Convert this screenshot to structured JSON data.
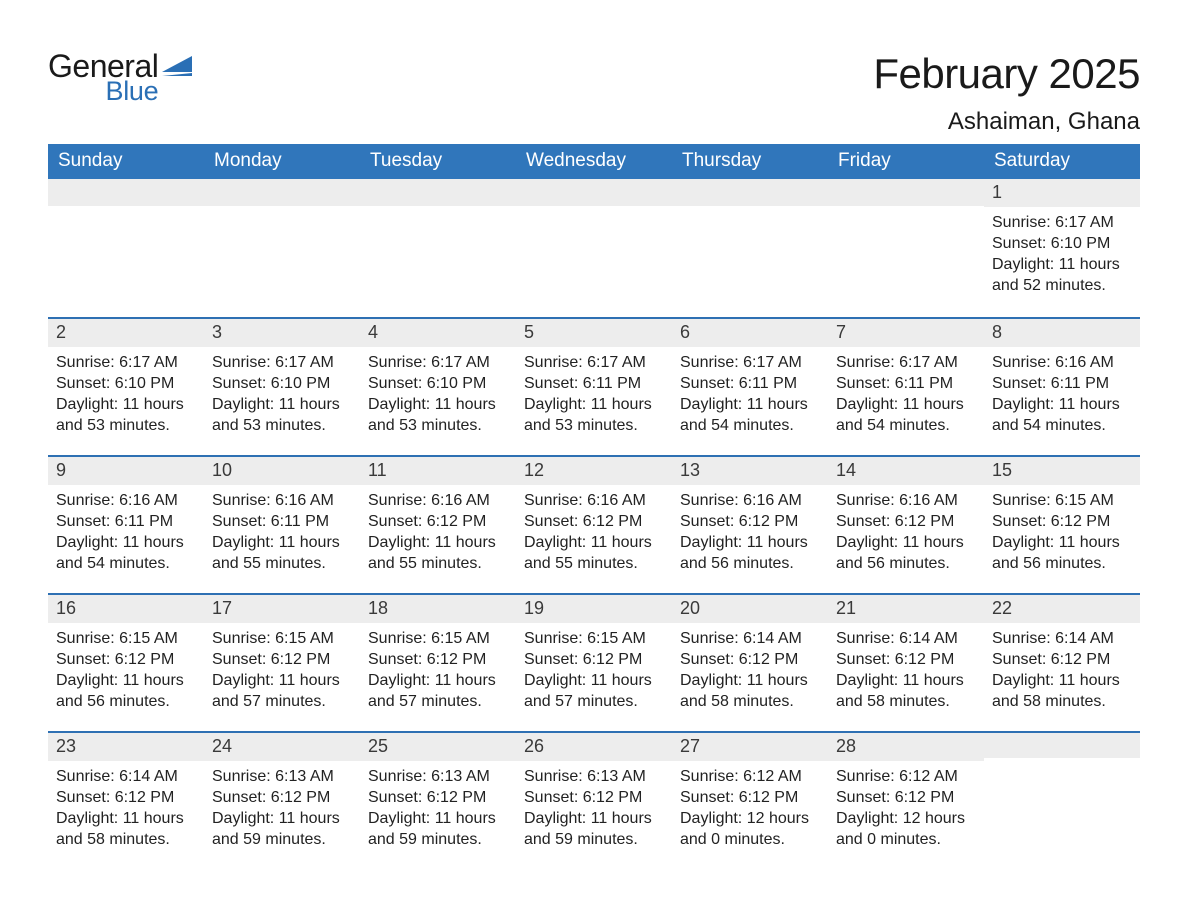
{
  "logo": {
    "word1": "General",
    "word2": "Blue",
    "flag_color": "#2a6fb5"
  },
  "header": {
    "month_title": "February 2025",
    "location": "Ashaiman, Ghana"
  },
  "style": {
    "header_bg": "#3076bb",
    "header_fg": "#ffffff",
    "daybar_bg": "#ededed",
    "daybar_border": "#2e70b3",
    "text_color": "#222222",
    "page_bg": "#ffffff",
    "title_fontsize": 42,
    "location_fontsize": 24,
    "dayheader_fontsize": 19,
    "daynum_fontsize": 18,
    "body_fontsize": 16
  },
  "day_headers": [
    "Sunday",
    "Monday",
    "Tuesday",
    "Wednesday",
    "Thursday",
    "Friday",
    "Saturday"
  ],
  "labels": {
    "sunrise": "Sunrise:",
    "sunset": "Sunset:",
    "daylight": "Daylight:"
  },
  "weeks": [
    [
      null,
      null,
      null,
      null,
      null,
      null,
      {
        "n": "1",
        "sunrise": "6:17 AM",
        "sunset": "6:10 PM",
        "daylight": "11 hours and 52 minutes."
      }
    ],
    [
      {
        "n": "2",
        "sunrise": "6:17 AM",
        "sunset": "6:10 PM",
        "daylight": "11 hours and 53 minutes."
      },
      {
        "n": "3",
        "sunrise": "6:17 AM",
        "sunset": "6:10 PM",
        "daylight": "11 hours and 53 minutes."
      },
      {
        "n": "4",
        "sunrise": "6:17 AM",
        "sunset": "6:10 PM",
        "daylight": "11 hours and 53 minutes."
      },
      {
        "n": "5",
        "sunrise": "6:17 AM",
        "sunset": "6:11 PM",
        "daylight": "11 hours and 53 minutes."
      },
      {
        "n": "6",
        "sunrise": "6:17 AM",
        "sunset": "6:11 PM",
        "daylight": "11 hours and 54 minutes."
      },
      {
        "n": "7",
        "sunrise": "6:17 AM",
        "sunset": "6:11 PM",
        "daylight": "11 hours and 54 minutes."
      },
      {
        "n": "8",
        "sunrise": "6:16 AM",
        "sunset": "6:11 PM",
        "daylight": "11 hours and 54 minutes."
      }
    ],
    [
      {
        "n": "9",
        "sunrise": "6:16 AM",
        "sunset": "6:11 PM",
        "daylight": "11 hours and 54 minutes."
      },
      {
        "n": "10",
        "sunrise": "6:16 AM",
        "sunset": "6:11 PM",
        "daylight": "11 hours and 55 minutes."
      },
      {
        "n": "11",
        "sunrise": "6:16 AM",
        "sunset": "6:12 PM",
        "daylight": "11 hours and 55 minutes."
      },
      {
        "n": "12",
        "sunrise": "6:16 AM",
        "sunset": "6:12 PM",
        "daylight": "11 hours and 55 minutes."
      },
      {
        "n": "13",
        "sunrise": "6:16 AM",
        "sunset": "6:12 PM",
        "daylight": "11 hours and 56 minutes."
      },
      {
        "n": "14",
        "sunrise": "6:16 AM",
        "sunset": "6:12 PM",
        "daylight": "11 hours and 56 minutes."
      },
      {
        "n": "15",
        "sunrise": "6:15 AM",
        "sunset": "6:12 PM",
        "daylight": "11 hours and 56 minutes."
      }
    ],
    [
      {
        "n": "16",
        "sunrise": "6:15 AM",
        "sunset": "6:12 PM",
        "daylight": "11 hours and 56 minutes."
      },
      {
        "n": "17",
        "sunrise": "6:15 AM",
        "sunset": "6:12 PM",
        "daylight": "11 hours and 57 minutes."
      },
      {
        "n": "18",
        "sunrise": "6:15 AM",
        "sunset": "6:12 PM",
        "daylight": "11 hours and 57 minutes."
      },
      {
        "n": "19",
        "sunrise": "6:15 AM",
        "sunset": "6:12 PM",
        "daylight": "11 hours and 57 minutes."
      },
      {
        "n": "20",
        "sunrise": "6:14 AM",
        "sunset": "6:12 PM",
        "daylight": "11 hours and 58 minutes."
      },
      {
        "n": "21",
        "sunrise": "6:14 AM",
        "sunset": "6:12 PM",
        "daylight": "11 hours and 58 minutes."
      },
      {
        "n": "22",
        "sunrise": "6:14 AM",
        "sunset": "6:12 PM",
        "daylight": "11 hours and 58 minutes."
      }
    ],
    [
      {
        "n": "23",
        "sunrise": "6:14 AM",
        "sunset": "6:12 PM",
        "daylight": "11 hours and 58 minutes."
      },
      {
        "n": "24",
        "sunrise": "6:13 AM",
        "sunset": "6:12 PM",
        "daylight": "11 hours and 59 minutes."
      },
      {
        "n": "25",
        "sunrise": "6:13 AM",
        "sunset": "6:12 PM",
        "daylight": "11 hours and 59 minutes."
      },
      {
        "n": "26",
        "sunrise": "6:13 AM",
        "sunset": "6:12 PM",
        "daylight": "11 hours and 59 minutes."
      },
      {
        "n": "27",
        "sunrise": "6:12 AM",
        "sunset": "6:12 PM",
        "daylight": "12 hours and 0 minutes."
      },
      {
        "n": "28",
        "sunrise": "6:12 AM",
        "sunset": "6:12 PM",
        "daylight": "12 hours and 0 minutes."
      },
      null
    ]
  ]
}
